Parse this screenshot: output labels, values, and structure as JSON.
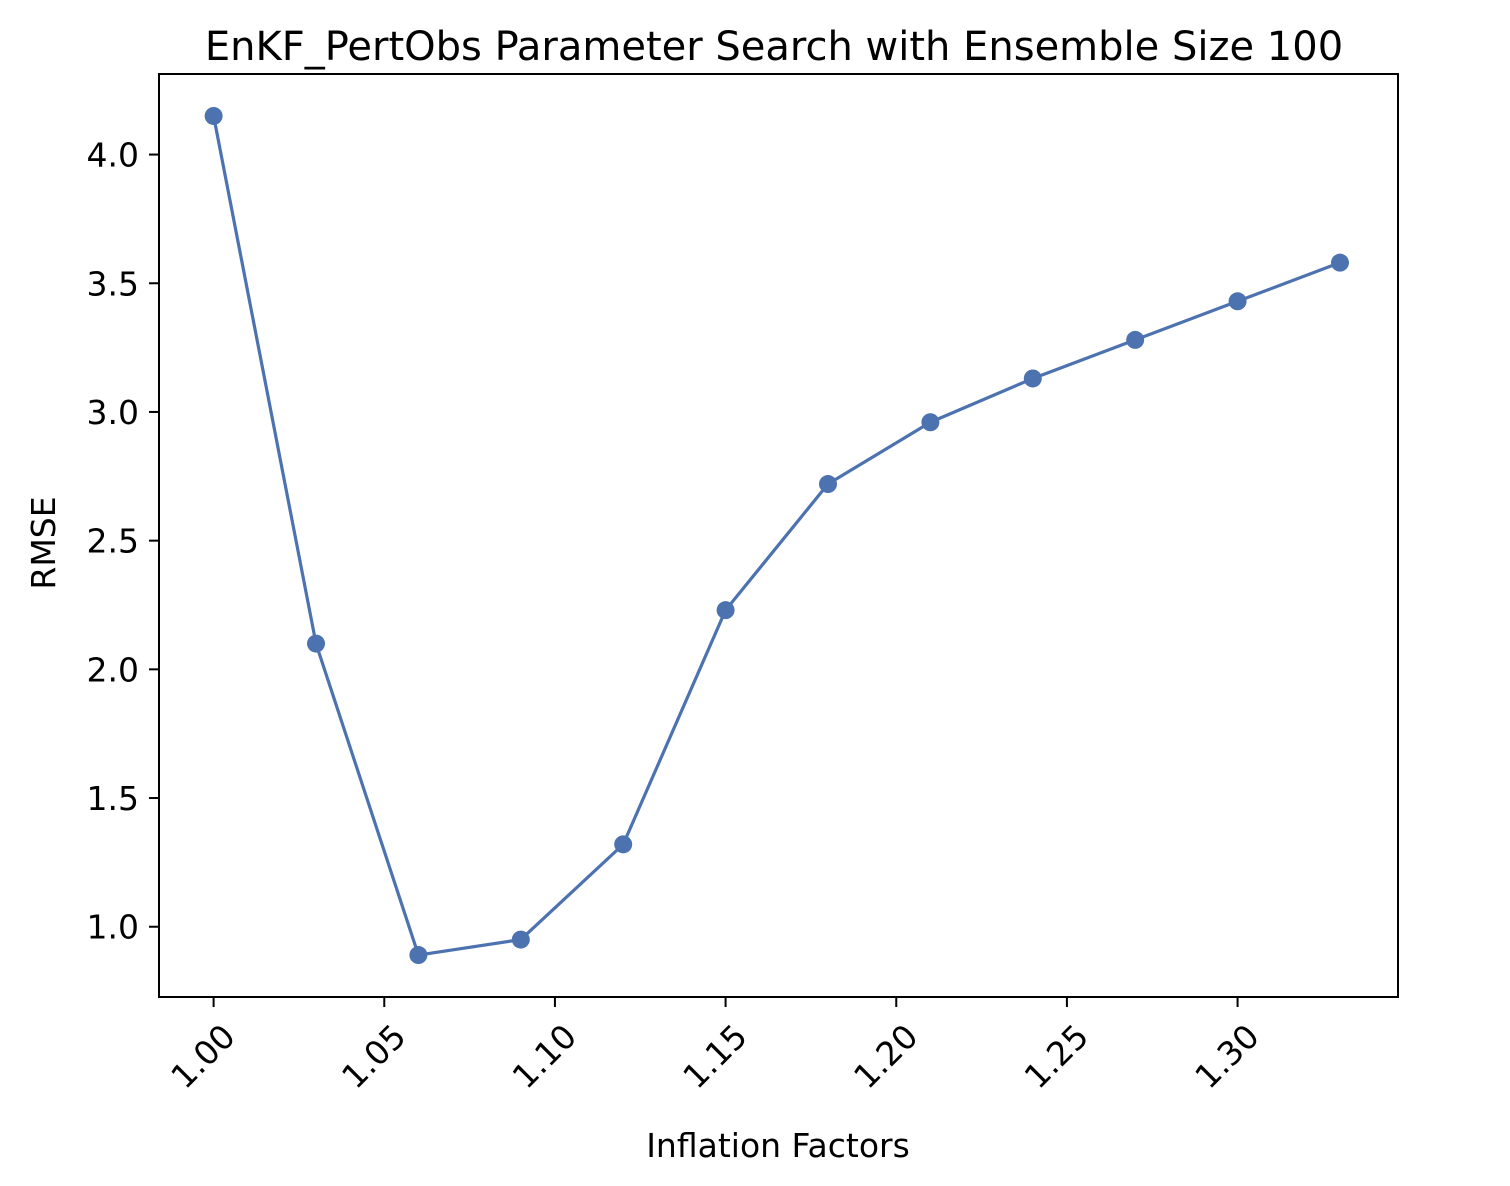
{
  "chart_data": {
    "type": "line",
    "title": "EnKF_PertObs Parameter Search with Ensemble Size 100",
    "xlabel": "Inflation Factors",
    "ylabel": "RMSE",
    "x": [
      1.0,
      1.03,
      1.06,
      1.09,
      1.12,
      1.15,
      1.18,
      1.21,
      1.24,
      1.27,
      1.3,
      1.33
    ],
    "series": [
      {
        "values": [
          4.15,
          2.1,
          0.89,
          0.95,
          1.32,
          2.23,
          2.72,
          2.96,
          3.13,
          3.28,
          3.43,
          3.58
        ],
        "color": "#4c72b0",
        "marker": "circle"
      }
    ],
    "xlim": [
      0.984,
      1.347
    ],
    "ylim": [
      0.727,
      4.313
    ],
    "xticks": [
      1.0,
      1.05,
      1.1,
      1.15,
      1.2,
      1.25,
      1.3
    ],
    "xtick_labels": [
      "1.00",
      "1.05",
      "1.10",
      "1.15",
      "1.20",
      "1.25",
      "1.30"
    ],
    "yticks": [
      1.0,
      1.5,
      2.0,
      2.5,
      3.0,
      3.5,
      4.0
    ],
    "ytick_labels": [
      "1.0",
      "1.5",
      "2.0",
      "2.5",
      "3.0",
      "3.5",
      "4.0"
    ],
    "xtick_rotation": 45,
    "grid": false,
    "legend": "none"
  }
}
